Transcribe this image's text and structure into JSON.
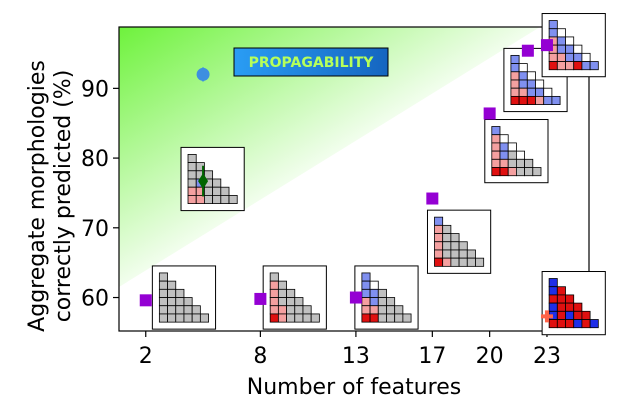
{
  "chart_data": {
    "type": "scatter",
    "xlabel": "Number of features",
    "ylabel_lines": [
      "Aggregate morphologies",
      "correctly predicted (%)"
    ],
    "banner": "PROPAGABILITY",
    "xlim": [
      0.6,
      25.2
    ],
    "ylim": [
      55.2,
      98.8
    ],
    "x_ticks": [
      2,
      8,
      13,
      17,
      20,
      23
    ],
    "y_ticks": [
      60,
      70,
      80,
      90
    ],
    "grid": false,
    "background_gradient": [
      "#6ef23c",
      "#ffffff"
    ],
    "series": [
      {
        "marker": "square",
        "color": "#9400d3",
        "points": [
          [
            2,
            59.6
          ],
          [
            8,
            59.8
          ],
          [
            13,
            60.0
          ],
          [
            17,
            74.2
          ],
          [
            20,
            86.4
          ],
          [
            22,
            95.4
          ],
          [
            23,
            96.2
          ]
        ]
      },
      {
        "marker": "circle",
        "color": "#3d8fe0",
        "points": [
          [
            5,
            92.0,
            1.0
          ]
        ]
      },
      {
        "marker": "diamond",
        "color": "#006400",
        "points": [
          [
            5,
            76.7,
            2.2
          ]
        ]
      },
      {
        "marker": "plus",
        "color": "#ff6347",
        "points": [
          [
            23,
            57.3
          ]
        ]
      }
    ],
    "insets": [
      {
        "n": 2,
        "x": 4.0,
        "y": 60.0,
        "colors": [
          "g",
          "gg",
          "ggg",
          "gggg",
          "ggggg",
          "gggggg"
        ]
      },
      {
        "n": 5,
        "x": 5.5,
        "y": 77.0,
        "colors": [
          "g",
          "gg",
          "ggg",
          "gbgg",
          "ppggg",
          "ppgggg"
        ]
      },
      {
        "n": 8,
        "x": 9.8,
        "y": 60.0,
        "colors": [
          "g",
          "pg",
          "pgg",
          "pggg",
          "ppggg",
          "rpgggg"
        ]
      },
      {
        "n": 13,
        "x": 14.6,
        "y": 60.0,
        "colors": [
          "b",
          "bw",
          "bbg",
          "pbgg",
          "ppggg",
          "rrgggg"
        ]
      },
      {
        "n": 17,
        "x": 18.4,
        "y": 68.0,
        "colors": [
          "b",
          "pg",
          "pgg",
          "pggg",
          "pgggg",
          "rpgggg"
        ]
      },
      {
        "n": 20,
        "x": 21.4,
        "y": 81.0,
        "colors": [
          "b",
          "pw",
          "pbw",
          "pbgw",
          "ppggg",
          "rrpggg"
        ]
      },
      {
        "n": 22,
        "x": 22.4,
        "y": 91.2,
        "colors": [
          "b",
          "bw",
          "pbw",
          "pbbw",
          "ppbbw",
          "rrrpbb"
        ]
      },
      {
        "n": 23,
        "x": 24.4,
        "y": 96.2,
        "colors": [
          "b",
          "bw",
          "pbw",
          "pbbw",
          "ppbbw",
          "rpprbb"
        ]
      },
      {
        "n": 24,
        "x": 24.4,
        "y": 59.2,
        "colors": [
          "B",
          "Br",
          "rrr",
          "Brrr",
          "BrBrr",
          "rrrBrB"
        ]
      }
    ]
  }
}
